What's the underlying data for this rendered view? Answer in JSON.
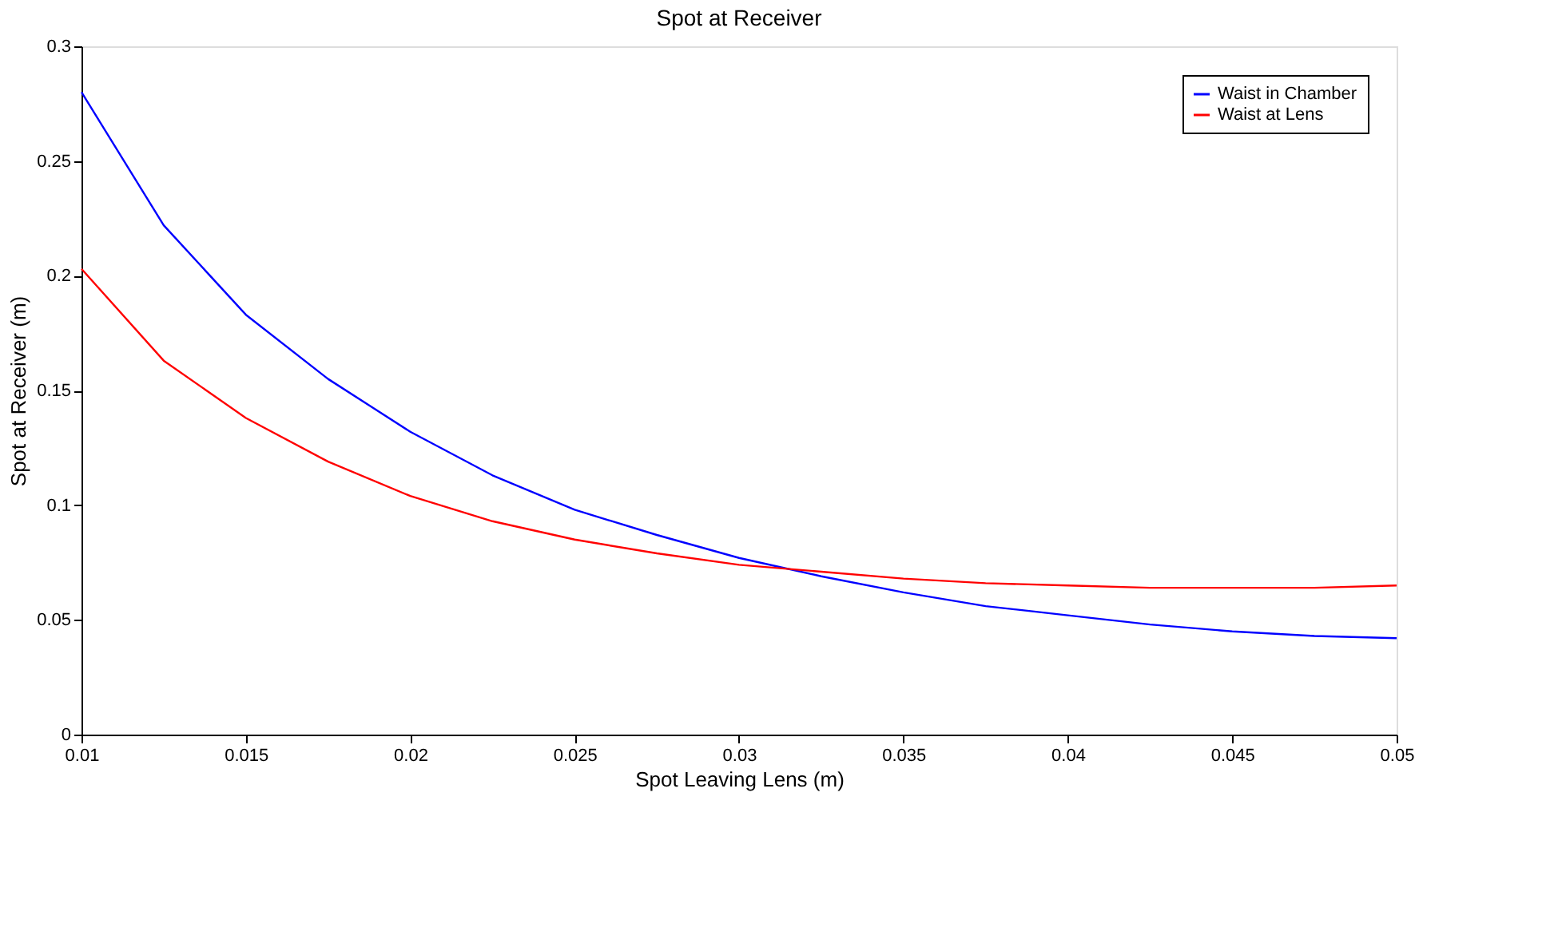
{
  "chart_data": {
    "type": "line",
    "title": "Spot at Receiver",
    "xlabel": "Spot Leaving Lens (m)",
    "ylabel": "Spot at Receiver (m)",
    "x": [
      0.01,
      0.0125,
      0.015,
      0.0175,
      0.02,
      0.0225,
      0.025,
      0.0275,
      0.03,
      0.0325,
      0.035,
      0.0375,
      0.04,
      0.0425,
      0.045,
      0.0475,
      0.05
    ],
    "series": [
      {
        "name": "Waist in Chamber",
        "color": "#0000ff",
        "values": [
          0.28,
          0.222,
          0.183,
          0.155,
          0.132,
          0.113,
          0.098,
          0.087,
          0.077,
          0.069,
          0.062,
          0.056,
          0.052,
          0.048,
          0.045,
          0.043,
          0.042
        ]
      },
      {
        "name": "Waist at Lens",
        "color": "#ff0000",
        "values": [
          0.203,
          0.163,
          0.138,
          0.119,
          0.104,
          0.093,
          0.085,
          0.079,
          0.074,
          0.071,
          0.068,
          0.066,
          0.065,
          0.064,
          0.064,
          0.064,
          0.065
        ]
      }
    ],
    "xlim": [
      0.01,
      0.05
    ],
    "xticks": [
      0.01,
      0.015,
      0.02,
      0.025,
      0.03,
      0.035,
      0.04,
      0.045,
      0.05
    ],
    "ylim": [
      0,
      0.3
    ],
    "yticks": [
      0,
      0.05,
      0.1,
      0.15,
      0.2,
      0.25,
      0.3
    ],
    "grid": false,
    "legend": "top right",
    "marker": "none",
    "line_style": "solid"
  }
}
